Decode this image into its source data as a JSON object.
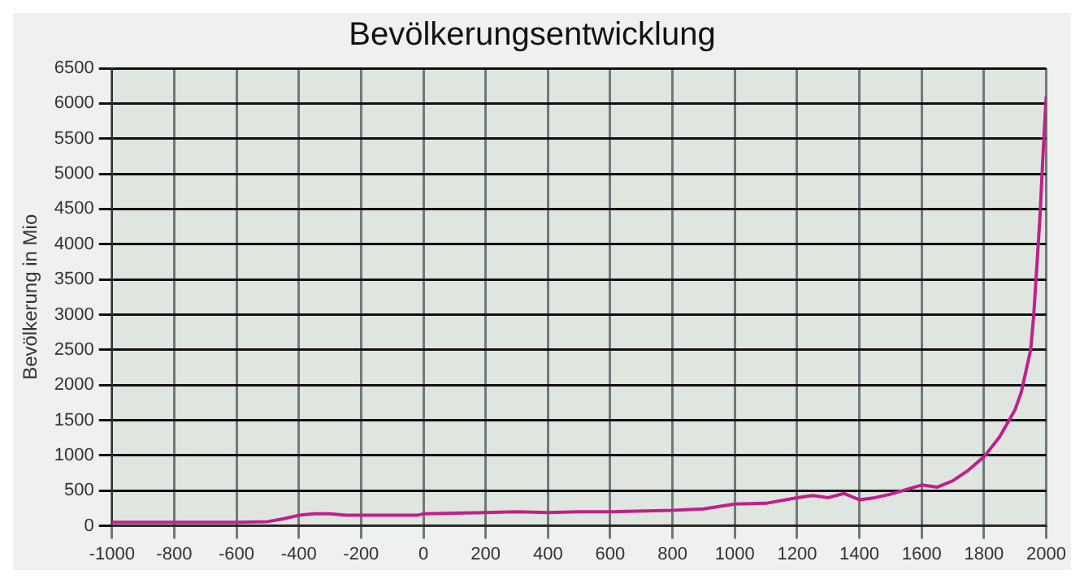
{
  "chart_data": {
    "type": "line",
    "title": "Bevölkerungsentwicklung",
    "ylabel": "Bevölkerung in Mio",
    "x": [
      -1000,
      -600,
      -500,
      -450,
      -400,
      -350,
      -300,
      -250,
      -100,
      -20,
      0,
      200,
      300,
      400,
      500,
      600,
      800,
      900,
      1000,
      1100,
      1200,
      1250,
      1300,
      1350,
      1400,
      1450,
      1500,
      1600,
      1650,
      1700,
      1750,
      1800,
      1850,
      1900,
      1920,
      1940,
      1950,
      1960,
      1970,
      1980,
      1990,
      2000
    ],
    "series": [
      {
        "color": "#c0208a",
        "values": [
          50,
          50,
          60,
          100,
          150,
          170,
          170,
          150,
          150,
          150,
          170,
          190,
          200,
          190,
          200,
          200,
          220,
          240,
          310,
          320,
          400,
          430,
          400,
          460,
          370,
          400,
          450,
          580,
          550,
          640,
          790,
          980,
          1260,
          1650,
          1900,
          2300,
          2500,
          3000,
          3700,
          4400,
          5300,
          6100
        ]
      }
    ],
    "xlim": [
      -1000,
      2000
    ],
    "xticks": [
      -1000,
      -800,
      -600,
      -400,
      -200,
      0,
      200,
      400,
      600,
      800,
      1000,
      1200,
      1400,
      1600,
      1800,
      2000
    ],
    "ylim": [
      0,
      6500
    ],
    "yticks": [
      0,
      500,
      1000,
      1500,
      2000,
      2500,
      3000,
      3500,
      4000,
      4500,
      5000,
      5500,
      6000,
      6500
    ],
    "grid": true,
    "legend": false,
    "marker": "none",
    "line_style": "solid"
  }
}
